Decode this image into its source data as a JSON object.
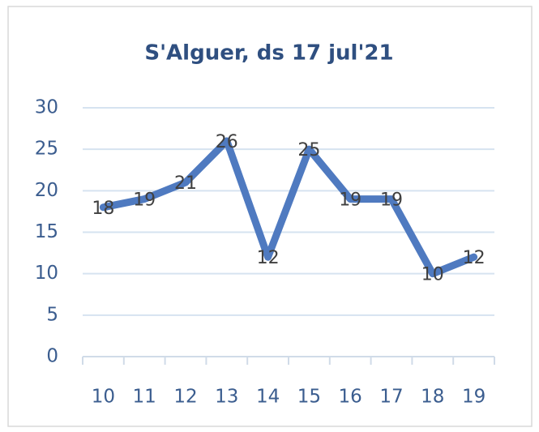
{
  "chart_data": {
    "type": "line",
    "title": "S'Alguer, ds 17 jul'21",
    "categories": [
      "10",
      "11",
      "12",
      "13",
      "14",
      "15",
      "16",
      "17",
      "18",
      "19"
    ],
    "values": [
      18,
      19,
      21,
      26,
      12,
      25,
      19,
      19,
      10,
      12
    ],
    "color": "#4f7ac0",
    "ylim": [
      0,
      30
    ],
    "yticks": [
      0,
      5,
      10,
      15,
      20,
      25,
      30
    ],
    "grid": true,
    "data_labels": true
  }
}
